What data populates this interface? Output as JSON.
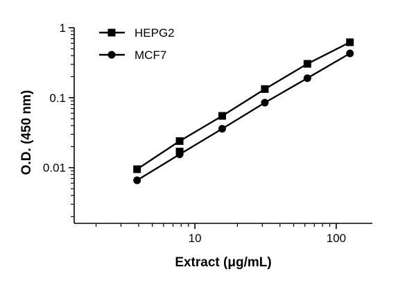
{
  "chart_data": {
    "type": "scatter",
    "title": "",
    "xlabel": "Extract (μg/mL)",
    "ylabel": "O.D. (450 nm)",
    "xscale": "log",
    "yscale": "log",
    "xlim": [
      1.4,
      180
    ],
    "ylim": [
      0.0016,
      1
    ],
    "x_ticks": [
      10,
      100
    ],
    "x_tick_labels": [
      "10",
      "100"
    ],
    "y_ticks": [
      0.01,
      0.1,
      1
    ],
    "y_tick_labels": [
      "0.01",
      "0.1",
      "1"
    ],
    "grid": false,
    "legend_position": "top-left",
    "series": [
      {
        "name": "HEPG2",
        "marker": "square",
        "color": "#000000",
        "x": [
          3.9,
          7.8,
          15.6,
          31.25,
          62.5,
          125
        ],
        "y": [
          0.0095,
          0.024,
          0.055,
          0.133,
          0.305,
          0.62
        ],
        "extra_points": [
          [
            7.8,
            0.017
          ]
        ]
      },
      {
        "name": "MCF7",
        "marker": "circle",
        "color": "#000000",
        "x": [
          3.9,
          7.8,
          15.6,
          31.25,
          62.5,
          125
        ],
        "y": [
          0.0066,
          0.0155,
          0.036,
          0.085,
          0.19,
          0.43
        ]
      }
    ]
  }
}
